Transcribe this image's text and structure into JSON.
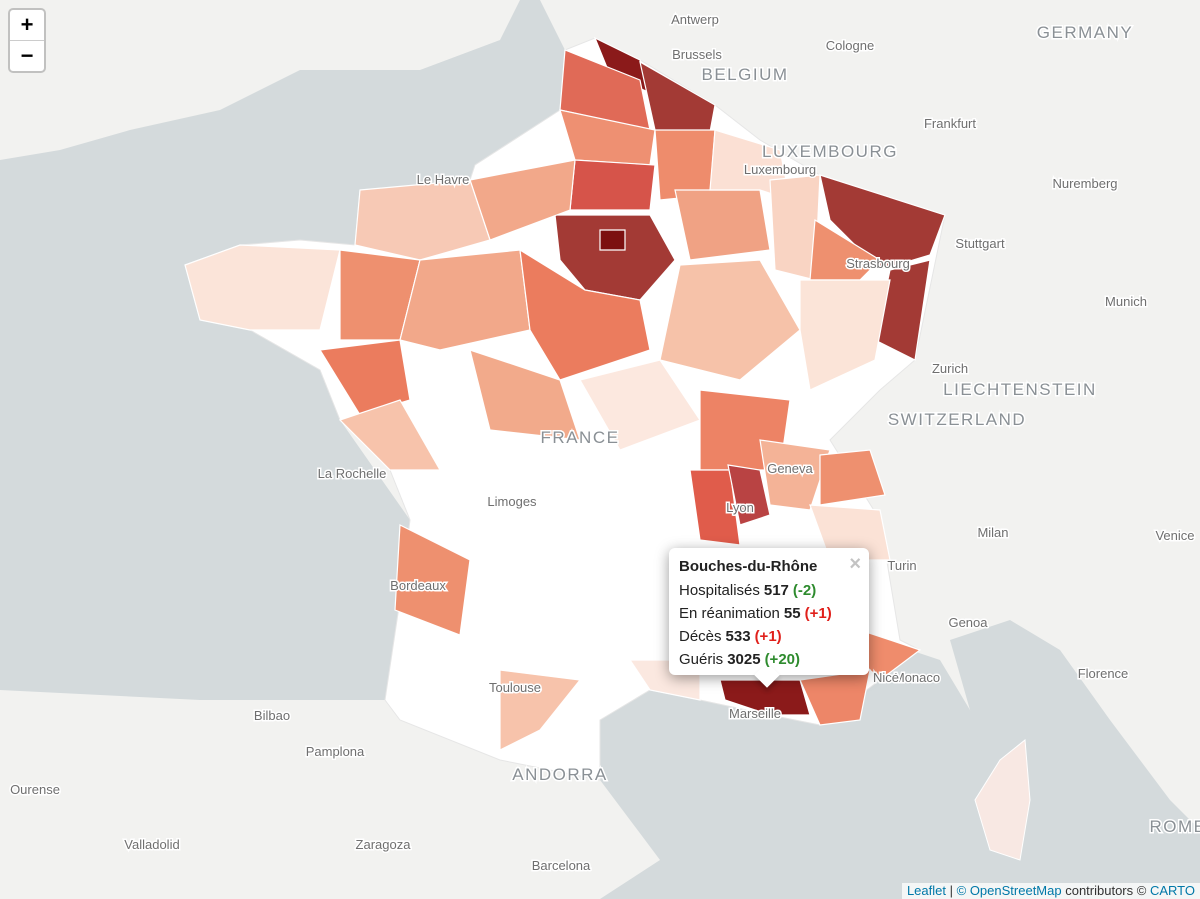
{
  "zoom": {
    "in": "+",
    "out": "−"
  },
  "cities": [
    "Antwerp",
    "Brussels",
    "Cologne",
    "Frankfurt",
    "Luxembourg",
    "Nuremberg",
    "Le Havre",
    "Stuttgart",
    "Strasbourg",
    "Munich",
    "Zurich",
    "Geneva",
    "La Rochelle",
    "Limoges",
    "Lyon",
    "Milan",
    "Venice",
    "Turin",
    "Bordeaux",
    "Genoa",
    "Monaco",
    "Nice",
    "Florence",
    "Marseille",
    "Toulouse",
    "Bilbao",
    "Pamplona",
    "Ourense",
    "Valladolid",
    "Zaragoza",
    "Barcelona"
  ],
  "countries": [
    "GERMANY",
    "BELGIUM",
    "LUXEMBOURG",
    "LIECHTENSTEIN",
    "SWITZERLAND",
    "FRANCE",
    "ANDORRA",
    "ROME"
  ],
  "popup": {
    "title": "Bouches-du-Rhône",
    "close": "×",
    "rows": [
      {
        "label": "Hospitalisés",
        "value": 517,
        "change": "(-2)",
        "change_color": "#2e8b2e"
      },
      {
        "label": "En réanimation",
        "value": 55,
        "change": "(+1)",
        "change_color": "#e0201b"
      },
      {
        "label": "Décès",
        "value": 533,
        "change": "(+1)",
        "change_color": "#e0201b"
      },
      {
        "label": "Guéris",
        "value": 3025,
        "change": "(+20)",
        "change_color": "#2e8b2e"
      }
    ]
  },
  "attribution": {
    "leaflet": "Leaflet",
    "separator": "|",
    "osm": "© OpenStreetMap",
    "contributors": "contributors ©",
    "carto": "CARTO"
  }
}
